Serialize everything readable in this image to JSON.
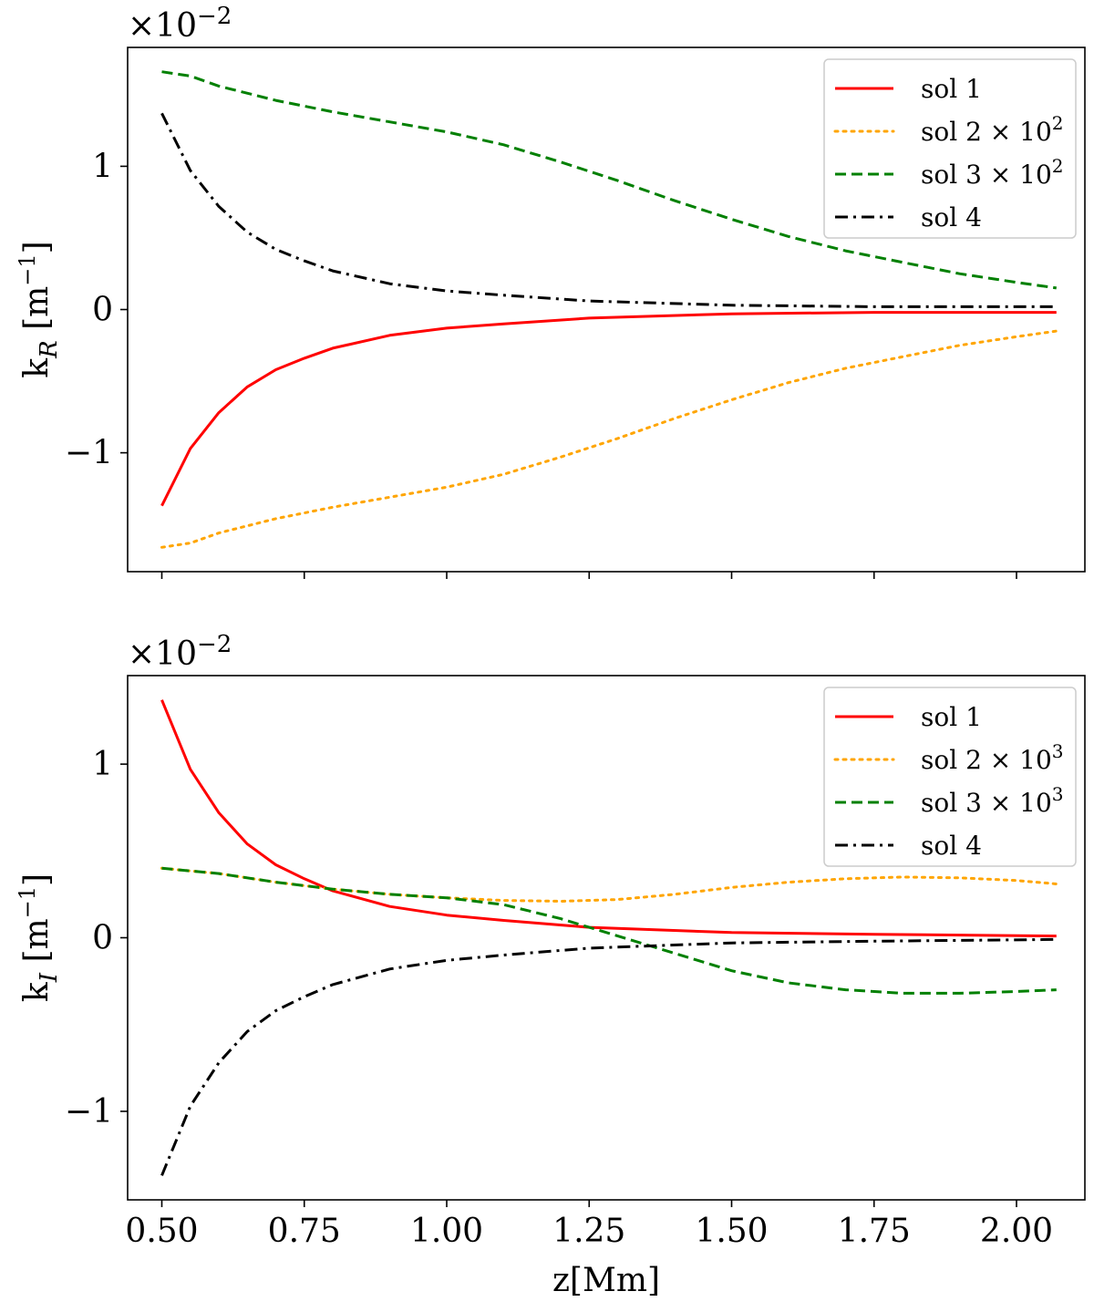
{
  "chart_data": [
    {
      "type": "line",
      "panel": "top",
      "ylabel_main": "k",
      "ylabel_sub": "R",
      "ylabel_unit": "[m",
      "ylabel_unit_exp": "−1",
      "ylabel_unit_close": "]",
      "xlabel": "",
      "multiplier_base": "×10",
      "multiplier_exp": "−2",
      "xlim": [
        0.44,
        2.12
      ],
      "ylim": [
        -1.83,
        1.83
      ],
      "xticks": [
        0.5,
        0.75,
        1.0,
        1.25,
        1.5,
        1.75,
        2.0
      ],
      "xtick_labels_shown": false,
      "yticks": [
        -1,
        0,
        1
      ],
      "ytick_labels": [
        "−1",
        "0",
        "1"
      ],
      "legend_position": "top-right",
      "series": [
        {
          "name": "sol 1",
          "legend_label": "sol 1",
          "legend_exp": "",
          "color": "#ff0000",
          "style": "solid",
          "x": [
            0.5,
            0.55,
            0.6,
            0.65,
            0.7,
            0.75,
            0.8,
            0.9,
            1.0,
            1.1,
            1.25,
            1.5,
            1.75,
            2.07
          ],
          "y": [
            -1.37,
            -0.97,
            -0.72,
            -0.54,
            -0.42,
            -0.34,
            -0.27,
            -0.18,
            -0.13,
            -0.1,
            -0.06,
            -0.03,
            -0.02,
            -0.02
          ]
        },
        {
          "name": "sol 2",
          "legend_label": "sol 2 × 10",
          "legend_exp": "2",
          "color": "#ffa500",
          "style": "dotted",
          "x": [
            0.5,
            0.55,
            0.6,
            0.7,
            0.8,
            0.9,
            1.0,
            1.1,
            1.2,
            1.3,
            1.4,
            1.5,
            1.6,
            1.7,
            1.8,
            1.9,
            2.0,
            2.07
          ],
          "y": [
            -1.66,
            -1.63,
            -1.56,
            -1.46,
            -1.38,
            -1.31,
            -1.24,
            -1.15,
            -1.03,
            -0.9,
            -0.76,
            -0.63,
            -0.51,
            -0.41,
            -0.33,
            -0.25,
            -0.19,
            -0.15
          ]
        },
        {
          "name": "sol 3",
          "legend_label": "sol 3 × 10",
          "legend_exp": "2",
          "color": "#008000",
          "style": "dashed",
          "x": [
            0.5,
            0.55,
            0.6,
            0.7,
            0.8,
            0.9,
            1.0,
            1.1,
            1.2,
            1.3,
            1.4,
            1.5,
            1.6,
            1.7,
            1.8,
            1.9,
            2.0,
            2.07
          ],
          "y": [
            1.66,
            1.63,
            1.56,
            1.46,
            1.38,
            1.31,
            1.24,
            1.15,
            1.03,
            0.9,
            0.76,
            0.63,
            0.51,
            0.41,
            0.33,
            0.25,
            0.19,
            0.15
          ]
        },
        {
          "name": "sol 4",
          "legend_label": "sol 4",
          "legend_exp": "",
          "color": "#000000",
          "style": "dashdot",
          "x": [
            0.5,
            0.55,
            0.6,
            0.65,
            0.7,
            0.75,
            0.8,
            0.9,
            1.0,
            1.1,
            1.25,
            1.5,
            1.75,
            2.07
          ],
          "y": [
            1.37,
            0.97,
            0.72,
            0.54,
            0.42,
            0.34,
            0.27,
            0.18,
            0.13,
            0.1,
            0.06,
            0.03,
            0.02,
            0.02
          ]
        }
      ]
    },
    {
      "type": "line",
      "panel": "bottom",
      "ylabel_main": "k",
      "ylabel_sub": "I",
      "ylabel_unit": "[m",
      "ylabel_unit_exp": "−1",
      "ylabel_unit_close": "]",
      "xlabel": "z[Mm]",
      "multiplier_base": "×10",
      "multiplier_exp": "−2",
      "xlim": [
        0.44,
        2.12
      ],
      "ylim": [
        -1.51,
        1.51
      ],
      "xticks": [
        0.5,
        0.75,
        1.0,
        1.25,
        1.5,
        1.75,
        2.0
      ],
      "xtick_labels": [
        "0.50",
        "0.75",
        "1.00",
        "1.25",
        "1.50",
        "1.75",
        "2.00"
      ],
      "xtick_labels_shown": true,
      "yticks": [
        -1,
        0,
        1
      ],
      "ytick_labels": [
        "−1",
        "0",
        "1"
      ],
      "legend_position": "top-right",
      "series": [
        {
          "name": "sol 1",
          "legend_label": "sol 1",
          "legend_exp": "",
          "color": "#ff0000",
          "style": "solid",
          "x": [
            0.5,
            0.55,
            0.6,
            0.65,
            0.7,
            0.75,
            0.8,
            0.9,
            1.0,
            1.1,
            1.25,
            1.5,
            1.75,
            2.07
          ],
          "y": [
            1.37,
            0.97,
            0.72,
            0.54,
            0.42,
            0.34,
            0.27,
            0.18,
            0.13,
            0.1,
            0.06,
            0.03,
            0.02,
            0.01
          ]
        },
        {
          "name": "sol 2",
          "legend_label": "sol 2 × 10",
          "legend_exp": "3",
          "color": "#ffa500",
          "style": "dotted",
          "x": [
            0.5,
            0.6,
            0.7,
            0.8,
            0.9,
            1.0,
            1.1,
            1.2,
            1.3,
            1.4,
            1.5,
            1.6,
            1.7,
            1.8,
            1.9,
            2.0,
            2.07
          ],
          "y": [
            0.4,
            0.37,
            0.32,
            0.28,
            0.25,
            0.23,
            0.215,
            0.21,
            0.22,
            0.25,
            0.29,
            0.32,
            0.34,
            0.35,
            0.345,
            0.33,
            0.31
          ]
        },
        {
          "name": "sol 3",
          "legend_label": "sol 3 × 10",
          "legend_exp": "3",
          "color": "#008000",
          "style": "dashed",
          "x": [
            0.5,
            0.6,
            0.7,
            0.8,
            0.9,
            1.0,
            1.1,
            1.2,
            1.25,
            1.3,
            1.4,
            1.5,
            1.6,
            1.7,
            1.8,
            1.9,
            2.0,
            2.07
          ],
          "y": [
            0.4,
            0.37,
            0.32,
            0.28,
            0.25,
            0.23,
            0.19,
            0.11,
            0.06,
            0.01,
            -0.09,
            -0.19,
            -0.26,
            -0.3,
            -0.32,
            -0.32,
            -0.31,
            -0.3
          ]
        },
        {
          "name": "sol 4",
          "legend_label": "sol 4",
          "legend_exp": "",
          "color": "#000000",
          "style": "dashdot",
          "x": [
            0.5,
            0.55,
            0.6,
            0.65,
            0.7,
            0.75,
            0.8,
            0.9,
            1.0,
            1.1,
            1.25,
            1.5,
            1.75,
            2.07
          ],
          "y": [
            -1.37,
            -0.97,
            -0.72,
            -0.54,
            -0.42,
            -0.34,
            -0.27,
            -0.18,
            -0.13,
            -0.1,
            -0.06,
            -0.03,
            -0.02,
            -0.01
          ]
        }
      ]
    }
  ]
}
